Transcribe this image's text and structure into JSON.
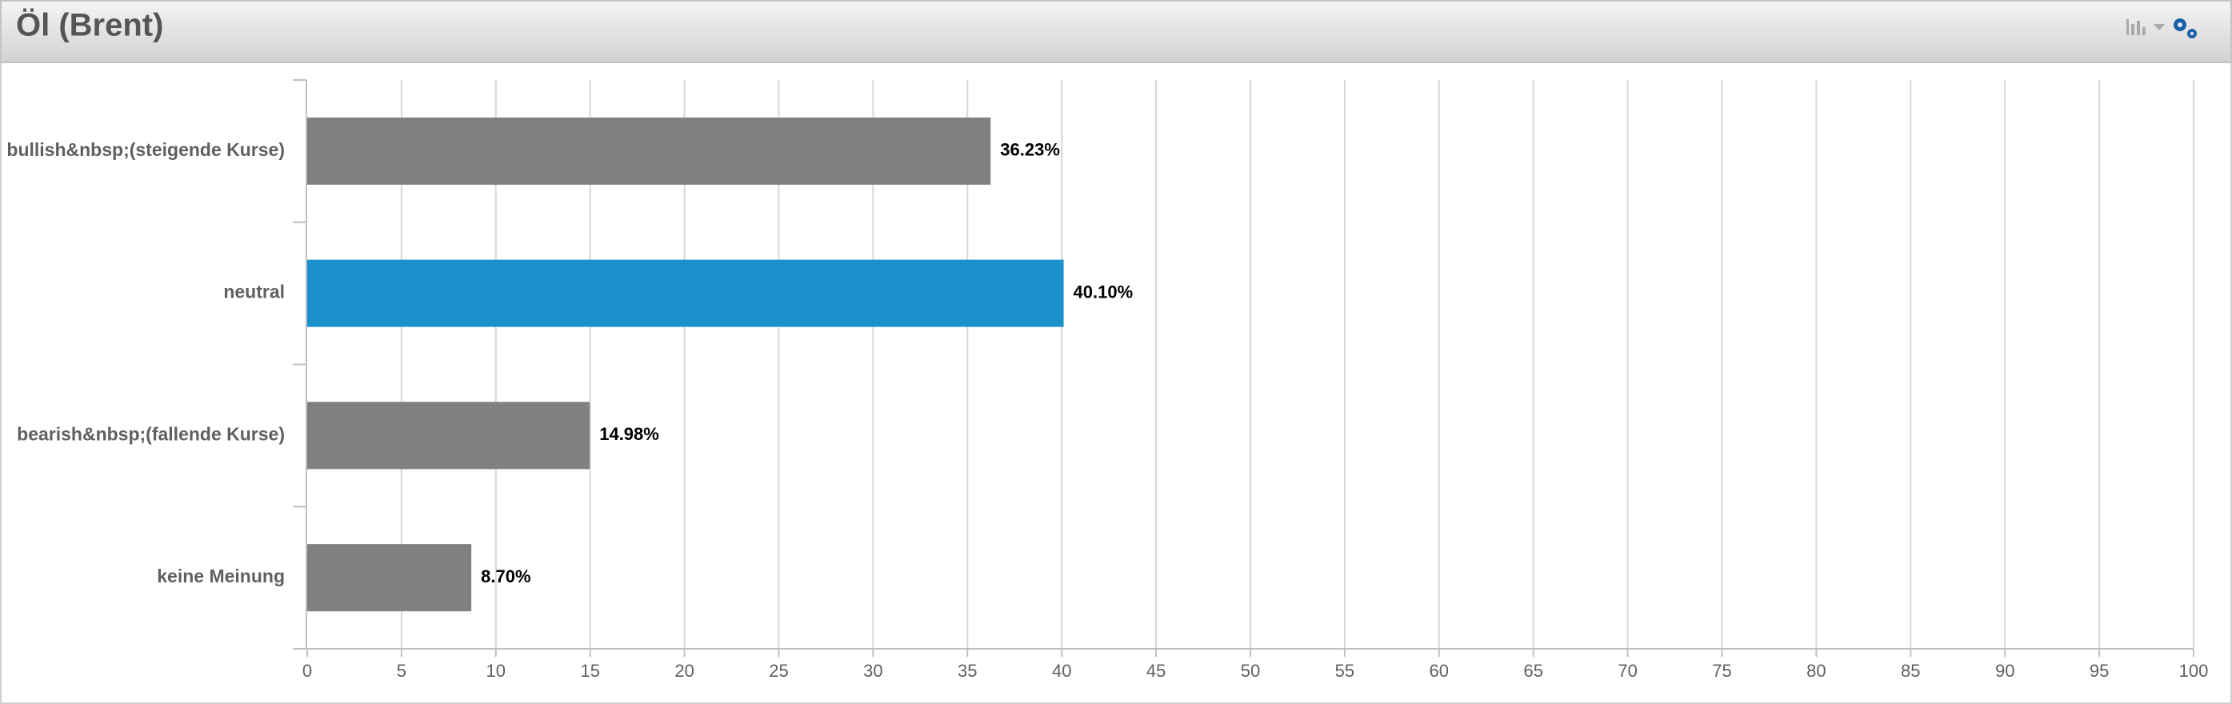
{
  "chart_data": {
    "type": "bar",
    "orientation": "horizontal",
    "title": "Öl (Brent)",
    "categories": [
      "bullish&nbsp;(steigende Kurse)",
      "neutral",
      "bearish&nbsp;(fallende Kurse)",
      "keine Meinung"
    ],
    "values": [
      36.23,
      40.1,
      14.98,
      8.7
    ],
    "value_labels": [
      "36.23%",
      "40.10%",
      "14.98%",
      "8.70%"
    ],
    "colors": [
      "#808080",
      "#1a90cc",
      "#808080",
      "#808080"
    ],
    "xlim": [
      0,
      100
    ],
    "xticks": [
      0,
      5,
      10,
      15,
      20,
      25,
      30,
      35,
      40,
      45,
      50,
      55,
      60,
      65,
      70,
      75,
      80,
      85,
      90,
      95,
      100
    ],
    "grid": true
  }
}
